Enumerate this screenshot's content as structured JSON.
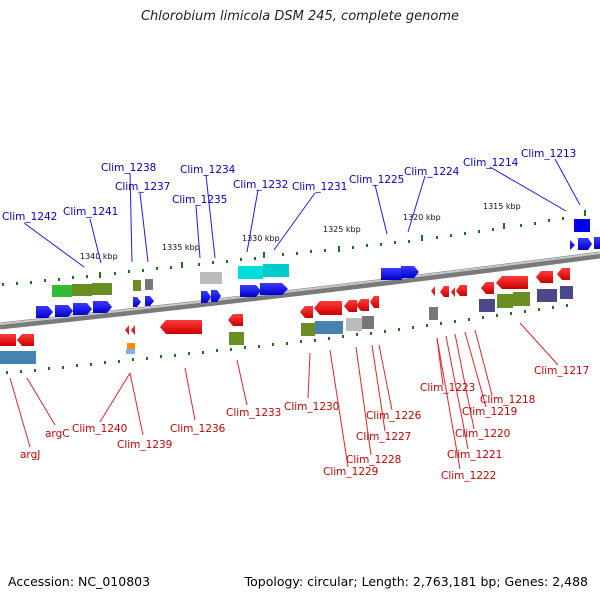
{
  "title": "Chlorobium limicola DSM 245, complete genome",
  "accession": "Accession: NC_010803",
  "summary": "Topology: circular; Length: 2,763,181 bp; Genes: 2,488",
  "kbp_marks": [
    "1340 kbp",
    "1335 kbp",
    "1330 kbp",
    "1325 kbp",
    "1320 kbp",
    "1315 kbp"
  ],
  "top_labels": [
    "Clim_1242",
    "Clim_1241",
    "Clim_1238",
    "Clim_1237",
    "Clim_1234",
    "Clim_1235",
    "Clim_1232",
    "Clim_1231",
    "Clim_1225",
    "Clim_1224",
    "Clim_1214",
    "Clim_1213"
  ],
  "bottom_labels": [
    "argJ",
    "argC",
    "Clim_1240",
    "Clim_1239",
    "Clim_1236",
    "Clim_1233",
    "Clim_1230",
    "Clim_1229",
    "Clim_1228",
    "Clim_1227",
    "Clim_1226",
    "Clim_1223",
    "Clim_1222",
    "Clim_1221",
    "Clim_1220",
    "Clim_1219",
    "Clim_1218",
    "Clim_1217"
  ],
  "colors": {
    "forward_gene": "#0000ee",
    "reverse_gene": "#ee0000",
    "backbone": "#8a8a8a",
    "label_top": "#0000cc",
    "label_bottom": "#cc0000",
    "tick": "#1a7a1a"
  }
}
